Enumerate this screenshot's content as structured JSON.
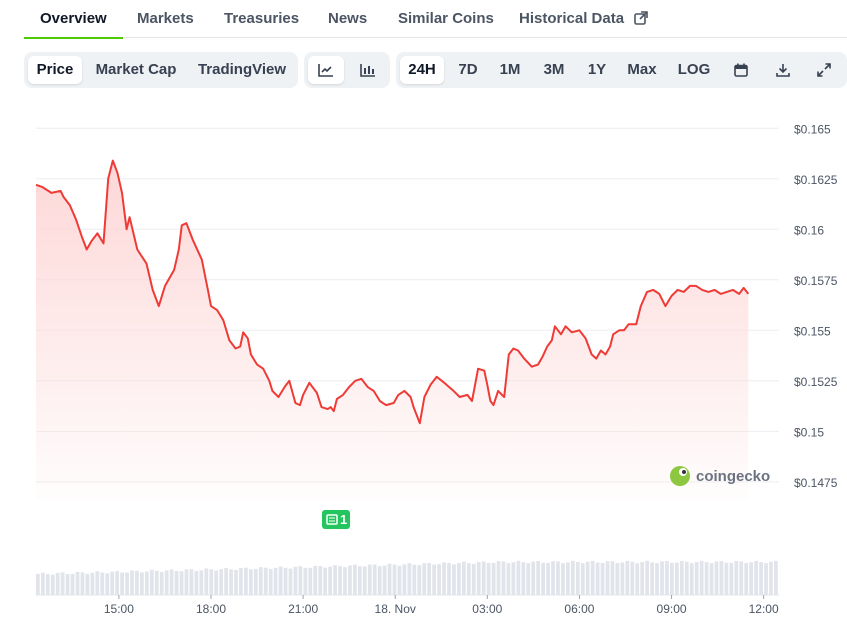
{
  "nav": {
    "tabs": [
      {
        "label": "Overview"
      },
      {
        "label": "Markets"
      },
      {
        "label": "Treasuries"
      },
      {
        "label": "News"
      },
      {
        "label": "Similar Coins"
      },
      {
        "label": "Historical Data"
      }
    ]
  },
  "toolbar": {
    "metric_tabs": [
      "Price",
      "Market Cap",
      "TradingView"
    ],
    "chart_style": [
      "line-chart-icon",
      "candlestick-icon"
    ],
    "ranges": [
      "24H",
      "7D",
      "1M",
      "3M",
      "1Y",
      "Max",
      "LOG"
    ],
    "selected_metric": "Price",
    "selected_range": "24H",
    "actions": [
      "calendar-icon",
      "download-icon",
      "fullscreen-icon"
    ]
  },
  "watermark": "coingecko",
  "event_marker": {
    "label": "1",
    "icon": "news-icon",
    "x": "21:58"
  },
  "colors": {
    "line": "#ef3b36",
    "fill": "#fdd5d5",
    "accent": "#4bcc00",
    "volume": "#e1e4ea",
    "marker": "#22c55e"
  },
  "chart_data": {
    "type": "area",
    "ylim": [
      0.1466,
      0.1664
    ],
    "y_ticks": [
      "$0.1475",
      "$0.15",
      "$0.1525",
      "$0.155",
      "$0.1575",
      "$0.16",
      "$0.1625",
      "$0.165"
    ],
    "y_tick_values": [
      0.1475,
      0.15,
      0.1525,
      0.155,
      0.1575,
      0.16,
      0.1625,
      0.165
    ],
    "x_ticks": [
      {
        "label": "15:00",
        "t": 15
      },
      {
        "label": "18:00",
        "t": 18
      },
      {
        "label": "21:00",
        "t": 21
      },
      {
        "label": "18. Nov",
        "t": 24
      },
      {
        "label": "03:00",
        "t": 27
      },
      {
        "label": "06:00",
        "t": 30
      },
      {
        "label": "09:00",
        "t": 33
      },
      {
        "label": "12:00",
        "t": 36
      }
    ],
    "xlim": [
      12.3,
      36.5
    ],
    "grid": true,
    "series": [
      {
        "points": [
          [
            12.3,
            0.1622
          ],
          [
            12.5,
            0.1621
          ],
          [
            12.8,
            0.1618
          ],
          [
            13.1,
            0.1619
          ],
          [
            13.2,
            0.1616
          ],
          [
            13.4,
            0.1612
          ],
          [
            13.6,
            0.1605
          ],
          [
            13.8,
            0.1596
          ],
          [
            13.95,
            0.159
          ],
          [
            14.1,
            0.1594
          ],
          [
            14.3,
            0.1598
          ],
          [
            14.5,
            0.1593
          ],
          [
            14.65,
            0.1625
          ],
          [
            14.8,
            0.1634
          ],
          [
            14.95,
            0.1628
          ],
          [
            15.1,
            0.1618
          ],
          [
            15.25,
            0.16
          ],
          [
            15.35,
            0.1606
          ],
          [
            15.6,
            0.159
          ],
          [
            15.9,
            0.1583
          ],
          [
            16.1,
            0.157
          ],
          [
            16.3,
            0.1562
          ],
          [
            16.5,
            0.1572
          ],
          [
            16.8,
            0.158
          ],
          [
            16.95,
            0.159
          ],
          [
            17.05,
            0.1602
          ],
          [
            17.2,
            0.1603
          ],
          [
            17.4,
            0.1595
          ],
          [
            17.7,
            0.1585
          ],
          [
            17.9,
            0.157
          ],
          [
            18.0,
            0.1562
          ],
          [
            18.2,
            0.156
          ],
          [
            18.4,
            0.1555
          ],
          [
            18.6,
            0.1545
          ],
          [
            18.8,
            0.1541
          ],
          [
            18.95,
            0.1542
          ],
          [
            19.05,
            0.1549
          ],
          [
            19.2,
            0.1546
          ],
          [
            19.3,
            0.1538
          ],
          [
            19.5,
            0.1533
          ],
          [
            19.7,
            0.1531
          ],
          [
            19.9,
            0.1525
          ],
          [
            20.0,
            0.152
          ],
          [
            20.2,
            0.1517
          ],
          [
            20.4,
            0.1522
          ],
          [
            20.55,
            0.1525
          ],
          [
            20.75,
            0.1514
          ],
          [
            20.9,
            0.1513
          ],
          [
            21.0,
            0.1518
          ],
          [
            21.2,
            0.1524
          ],
          [
            21.45,
            0.1519
          ],
          [
            21.6,
            0.1512
          ],
          [
            21.8,
            0.1511
          ],
          [
            21.9,
            0.1512
          ],
          [
            22.0,
            0.151
          ],
          [
            22.1,
            0.1516
          ],
          [
            22.3,
            0.1518
          ],
          [
            22.5,
            0.1522
          ],
          [
            22.7,
            0.1525
          ],
          [
            22.9,
            0.1526
          ],
          [
            23.1,
            0.1522
          ],
          [
            23.3,
            0.152
          ],
          [
            23.5,
            0.1515
          ],
          [
            23.7,
            0.1513
          ],
          [
            23.95,
            0.1514
          ],
          [
            24.1,
            0.1518
          ],
          [
            24.3,
            0.152
          ],
          [
            24.5,
            0.1517
          ],
          [
            24.6,
            0.1512
          ],
          [
            24.8,
            0.1504
          ],
          [
            24.95,
            0.1517
          ],
          [
            25.15,
            0.1523
          ],
          [
            25.35,
            0.1527
          ],
          [
            25.6,
            0.1524
          ],
          [
            25.75,
            0.1522
          ],
          [
            25.9,
            0.152
          ],
          [
            26.1,
            0.1517
          ],
          [
            26.35,
            0.1518
          ],
          [
            26.5,
            0.1515
          ],
          [
            26.7,
            0.1531
          ],
          [
            26.9,
            0.153
          ],
          [
            27.0,
            0.1523
          ],
          [
            27.1,
            0.1515
          ],
          [
            27.2,
            0.1513
          ],
          [
            27.35,
            0.152
          ],
          [
            27.55,
            0.1517
          ],
          [
            27.7,
            0.1538
          ],
          [
            27.85,
            0.1541
          ],
          [
            28.0,
            0.154
          ],
          [
            28.2,
            0.1536
          ],
          [
            28.45,
            0.1532
          ],
          [
            28.65,
            0.1533
          ],
          [
            28.8,
            0.1537
          ],
          [
            28.95,
            0.1542
          ],
          [
            29.1,
            0.1545
          ],
          [
            29.2,
            0.1552
          ],
          [
            29.4,
            0.1548
          ],
          [
            29.55,
            0.1552
          ],
          [
            29.75,
            0.1549
          ],
          [
            30.0,
            0.155
          ],
          [
            30.2,
            0.1546
          ],
          [
            30.4,
            0.1538
          ],
          [
            30.55,
            0.1536
          ],
          [
            30.7,
            0.154
          ],
          [
            30.85,
            0.1538
          ],
          [
            31.0,
            0.1542
          ],
          [
            31.1,
            0.1548
          ],
          [
            31.3,
            0.155
          ],
          [
            31.45,
            0.155
          ],
          [
            31.6,
            0.1553
          ],
          [
            31.85,
            0.1553
          ],
          [
            32.0,
            0.1562
          ],
          [
            32.2,
            0.1569
          ],
          [
            32.4,
            0.157
          ],
          [
            32.6,
            0.1568
          ],
          [
            32.8,
            0.1562
          ],
          [
            33.0,
            0.1567
          ],
          [
            33.2,
            0.157
          ],
          [
            33.4,
            0.1569
          ],
          [
            33.6,
            0.1572
          ],
          [
            33.8,
            0.1572
          ],
          [
            34.0,
            0.157
          ],
          [
            34.2,
            0.1569
          ],
          [
            34.4,
            0.157
          ],
          [
            34.6,
            0.1568
          ],
          [
            34.8,
            0.1569
          ],
          [
            35.0,
            0.157
          ],
          [
            35.2,
            0.1568
          ],
          [
            35.35,
            0.1571
          ],
          [
            35.5,
            0.1568
          ]
        ]
      }
    ],
    "volume_ylim": [
      0,
      1.0
    ],
    "volume_level": [
      0.35,
      0.55
    ]
  }
}
